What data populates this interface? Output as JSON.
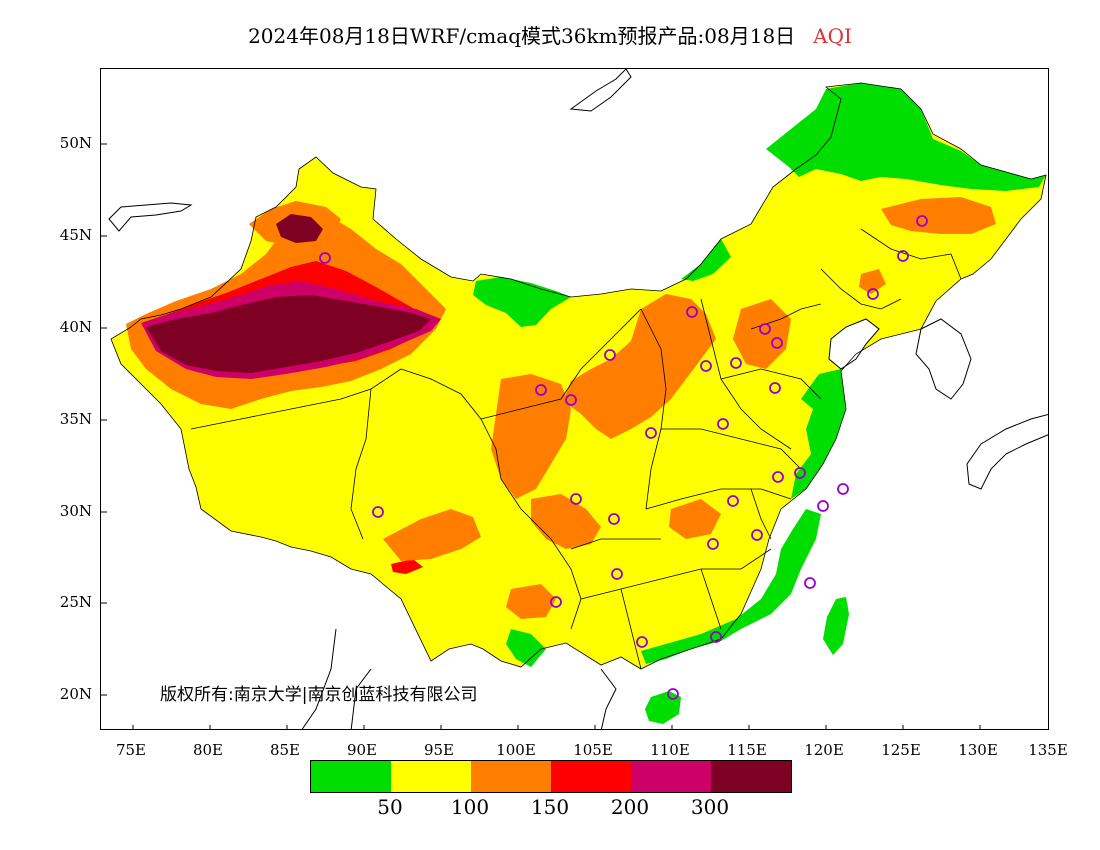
{
  "title": {
    "main": "2024年08月18日WRF/cmaq模式36km预报产品:08月18日",
    "pollutant": "AQI"
  },
  "colors": {
    "good": "#00dd00",
    "moderate": "#ffff00",
    "usg": "#ff7e00",
    "unhealthy": "#ff0000",
    "very_unhealthy": "#cc0066",
    "hazardous": "#7e0023",
    "city_marker": "#9900cc"
  },
  "axes": {
    "lat_labels": [
      "50N",
      "45N",
      "40N",
      "35N",
      "30N",
      "25N",
      "20N"
    ],
    "lon_labels": [
      "75E",
      "80E",
      "85E",
      "90E",
      "95E",
      "100E",
      "105E",
      "110E",
      "115E",
      "120E",
      "125E",
      "130E",
      "135E"
    ]
  },
  "copyright": "版权所有:南京大学|南京创蓝科技有限公司",
  "legend": {
    "swatch_colors": [
      "#00dd00",
      "#ffff00",
      "#ff7e00",
      "#ff0000",
      "#cc0066",
      "#7e0023"
    ],
    "breaks": [
      "50",
      "100",
      "150",
      "200",
      "300"
    ]
  }
}
